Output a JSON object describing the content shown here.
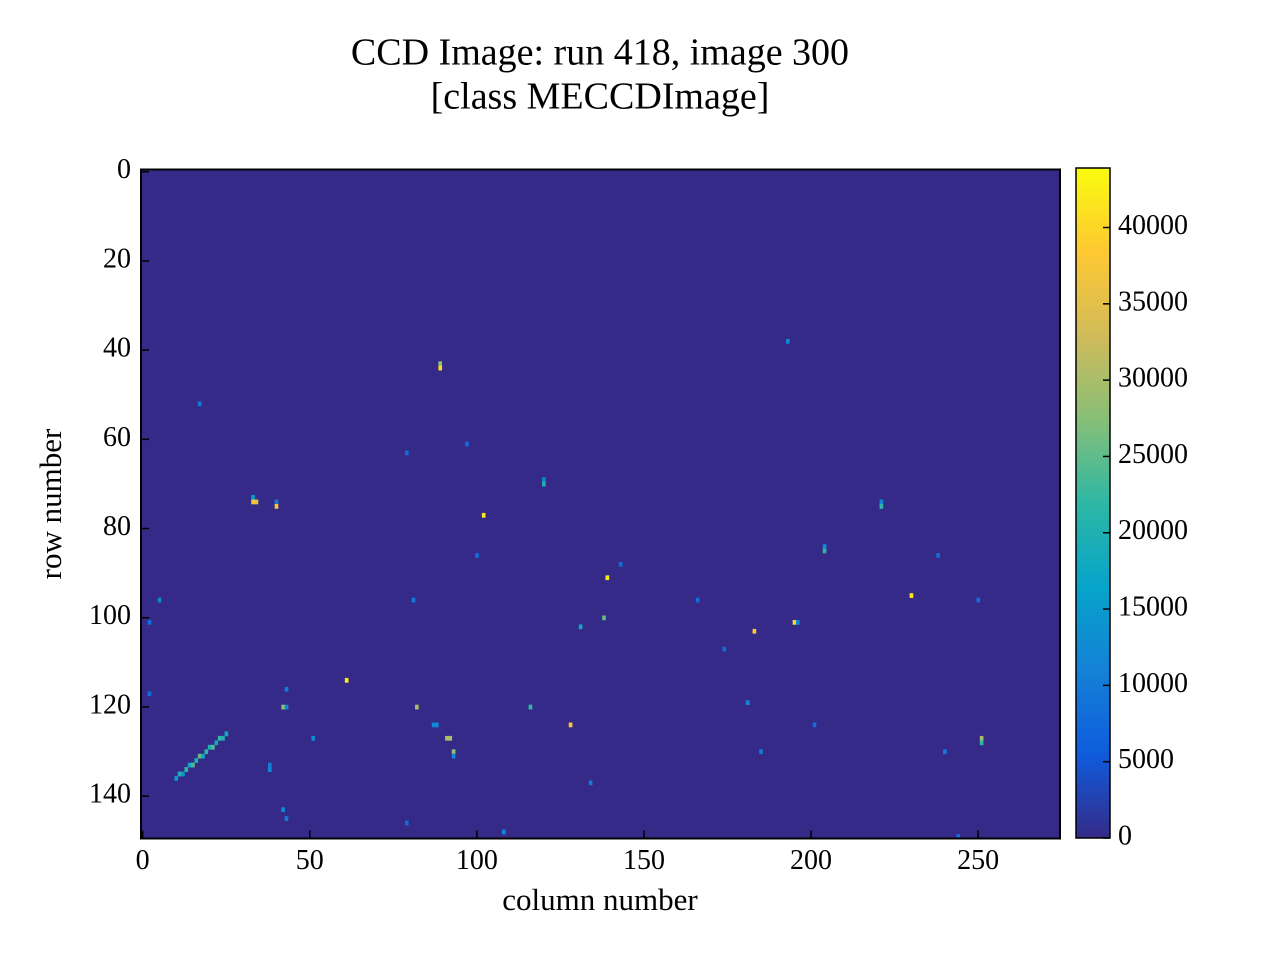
{
  "chart_data": {
    "type": "heatmap",
    "title": [
      "CCD Image: run 418, image 300",
      "[class MECCDImage]"
    ],
    "xlabel": "column number",
    "ylabel": "row number",
    "colormap": "parula",
    "xlim": [
      -0.5,
      274.5
    ],
    "ylim": [
      149.5,
      -0.5
    ],
    "xticks": [
      0,
      50,
      100,
      150,
      200,
      250
    ],
    "yticks": [
      0,
      20,
      40,
      60,
      80,
      100,
      120,
      140
    ],
    "clim": [
      0,
      43900
    ],
    "cticks": [
      0,
      5000,
      10000,
      15000,
      20000,
      25000,
      30000,
      35000,
      40000
    ],
    "background": 0,
    "x": [
      193,
      89,
      89,
      17,
      97,
      79,
      120,
      120,
      33,
      33,
      34,
      40,
      40,
      102,
      100,
      204,
      204,
      221,
      221,
      238,
      143,
      139,
      5,
      81,
      166,
      230,
      250,
      2,
      138,
      131,
      195,
      196,
      183,
      174,
      61,
      2,
      43,
      42,
      43,
      82,
      116,
      181,
      87,
      88,
      128,
      201,
      51,
      91,
      92,
      251,
      251,
      185,
      240,
      93,
      93,
      134,
      38,
      38,
      42,
      43,
      79,
      108,
      244,
      10,
      11,
      12,
      13,
      14,
      15,
      16,
      17,
      18,
      19,
      20,
      21,
      22,
      23,
      24,
      25
    ],
    "y": [
      38,
      43,
      44,
      52,
      61,
      63,
      69,
      70,
      73,
      74,
      74,
      74,
      75,
      77,
      86,
      84,
      85,
      74,
      75,
      86,
      88,
      91,
      96,
      96,
      96,
      95,
      96,
      101,
      100,
      102,
      101,
      101,
      103,
      107,
      114,
      117,
      116,
      120,
      120,
      120,
      120,
      119,
      124,
      124,
      124,
      124,
      127,
      127,
      127,
      127,
      128,
      130,
      130,
      130,
      131,
      137,
      133,
      134,
      143,
      145,
      146,
      148,
      149,
      136,
      135,
      135,
      134,
      133,
      133,
      132,
      131,
      131,
      130,
      129,
      129,
      128,
      127,
      127,
      126
    ],
    "values": [
      12000,
      28000,
      40000,
      10000,
      8000,
      8000,
      12000,
      20000,
      15000,
      38000,
      36000,
      10000,
      38000,
      42000,
      8000,
      12000,
      22000,
      12000,
      22000,
      8000,
      8000,
      42000,
      12000,
      10000,
      8000,
      42000,
      8000,
      8000,
      25000,
      18000,
      40000,
      12000,
      38000,
      8000,
      42000,
      8000,
      10000,
      28000,
      12000,
      30000,
      22000,
      12000,
      12000,
      12000,
      38000,
      8000,
      12000,
      30000,
      30000,
      30000,
      22000,
      10000,
      10000,
      28000,
      12000,
      10000,
      10000,
      12000,
      12000,
      10000,
      8000,
      12000,
      8000,
      15000,
      20000,
      15000,
      22000,
      18000,
      24000,
      20000,
      25000,
      18000,
      22000,
      20000,
      24000,
      18000,
      22000,
      20000,
      18000
    ]
  }
}
